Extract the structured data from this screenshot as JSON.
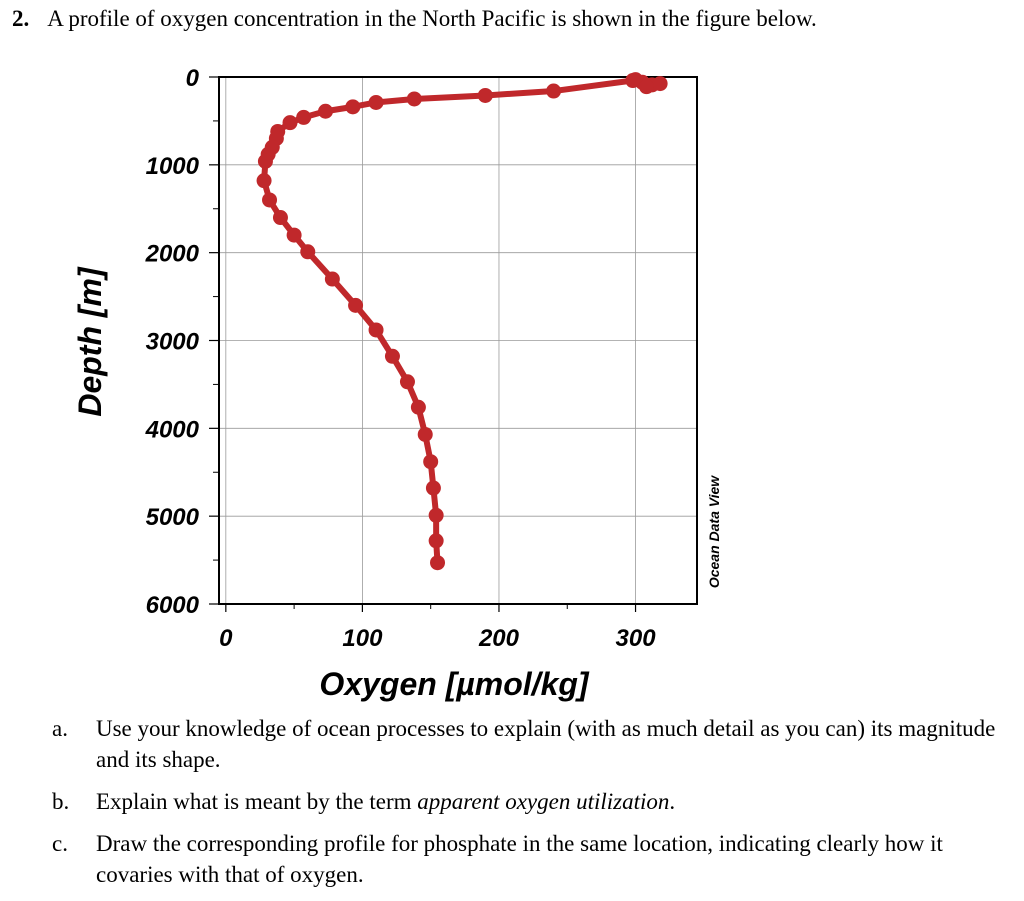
{
  "question": {
    "number": "2.",
    "text": "A profile of oxygen concentration in the North Pacific is shown in the figure below."
  },
  "chart_data": {
    "type": "line",
    "title": "",
    "xlabel": "Oxygen [µmol/kg]",
    "ylabel": "Depth [m]",
    "xlim": [
      -5,
      345
    ],
    "ylim": [
      6000,
      0
    ],
    "y_inverted": true,
    "grid": true,
    "x_ticks": [
      "0",
      "100",
      "200",
      "300"
    ],
    "y_ticks": [
      "0",
      "1000",
      "2000",
      "3000",
      "4000",
      "5000",
      "6000"
    ],
    "watermark": "Ocean Data View",
    "series_color": "#c0282b",
    "series": [
      {
        "x": [
          300,
          305,
          312,
          318,
          308,
          298,
          240,
          190,
          138,
          110,
          93,
          73,
          57,
          47,
          38,
          37,
          34,
          31,
          29,
          28,
          32,
          40,
          50,
          60,
          78,
          95,
          110,
          122,
          133,
          141,
          146,
          150,
          152,
          154,
          154,
          155
        ],
        "y": [
          30,
          60,
          90,
          75,
          110,
          40,
          160,
          210,
          250,
          290,
          340,
          390,
          460,
          520,
          620,
          700,
          800,
          880,
          960,
          1180,
          1400,
          1600,
          1800,
          1990,
          2300,
          2600,
          2880,
          3180,
          3470,
          3760,
          4070,
          4380,
          4680,
          4990,
          5280,
          5530
        ]
      }
    ]
  },
  "parts": [
    {
      "letter": "a.",
      "text": "Use your knowledge of ocean processes to explain (with as much detail as you can) its magnitude and its shape."
    },
    {
      "letter": "b.",
      "text_before": "Explain what is meant by the term ",
      "italic": "apparent oxygen utilization",
      "text_after": "."
    },
    {
      "letter": "c.",
      "text": "Draw the corresponding profile for phosphate in the same location, indicating clearly how it covaries with that of oxygen."
    }
  ]
}
